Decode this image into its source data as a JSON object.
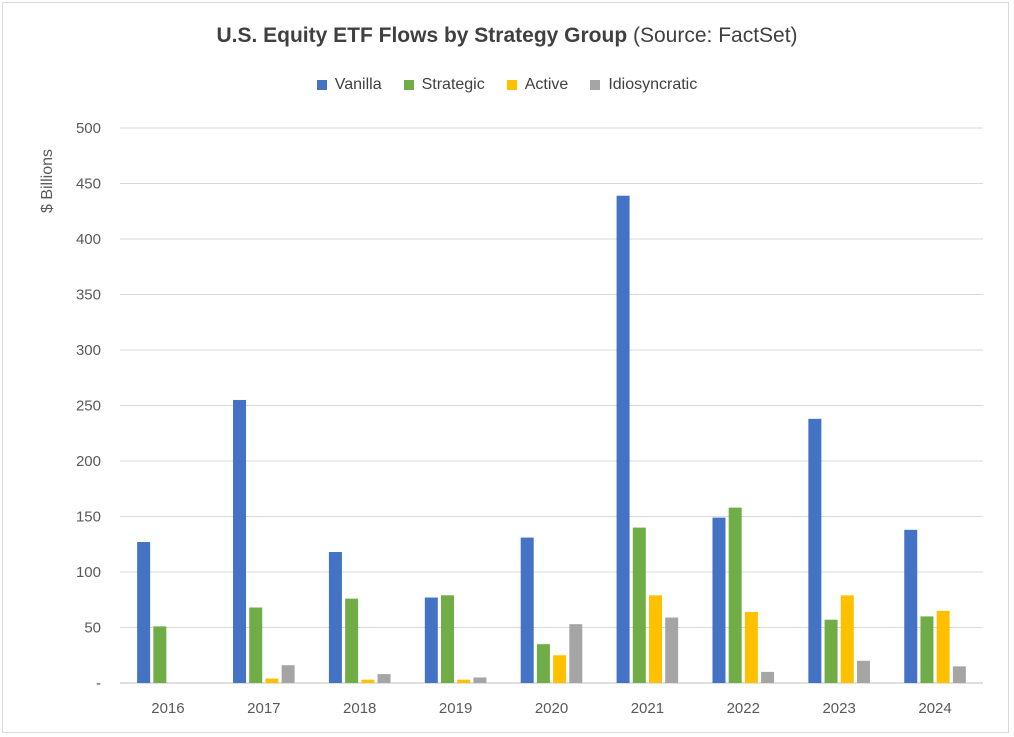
{
  "chart_data": {
    "type": "bar",
    "title": "U.S. Equity ETF Flows by Strategy Group",
    "subtitle": "(Source: FactSet)",
    "ylabel": "$ Billions",
    "xlabel": "",
    "ylim": [
      0,
      500
    ],
    "yticks": [
      0,
      50,
      100,
      150,
      200,
      250,
      300,
      350,
      400,
      450,
      500
    ],
    "ytick_labels": [
      "-",
      "50",
      "100",
      "150",
      "200",
      "250",
      "300",
      "350",
      "400",
      "450",
      "500"
    ],
    "categories": [
      "2016",
      "2017",
      "2018",
      "2019",
      "2020",
      "2021",
      "2022",
      "2023",
      "2024"
    ],
    "series": [
      {
        "name": "Vanilla",
        "color": "#4472c4",
        "values": [
          127,
          255,
          118,
          77,
          131,
          439,
          149,
          238,
          138
        ]
      },
      {
        "name": "Strategic",
        "color": "#70ad47",
        "values": [
          51,
          68,
          76,
          79,
          35,
          140,
          158,
          57,
          60
        ]
      },
      {
        "name": "Active",
        "color": "#ffc000",
        "values": [
          0,
          4,
          3,
          3,
          25,
          79,
          64,
          79,
          65
        ]
      },
      {
        "name": "Idiosyncratic",
        "color": "#a5a5a5",
        "values": [
          0,
          16,
          8,
          5,
          53,
          59,
          10,
          20,
          15
        ]
      }
    ],
    "grid": true,
    "legend_position": "top"
  }
}
